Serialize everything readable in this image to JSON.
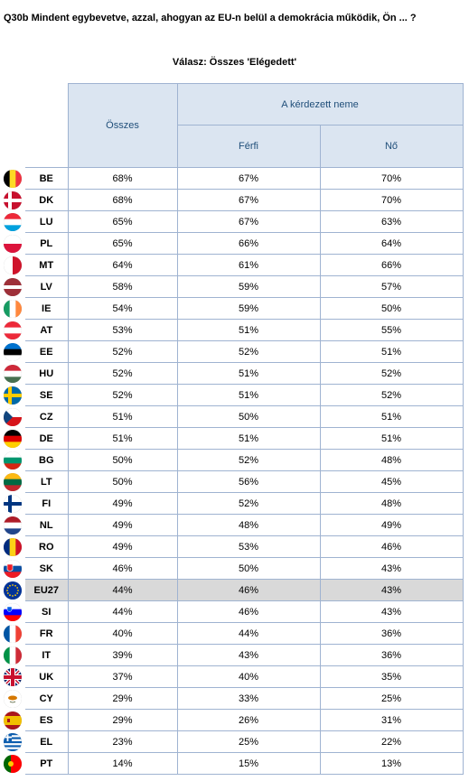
{
  "title": "Q30b Mindent egybevetve, azzal, ahogyan az EU-n belül a demokrácia működik, Ön ... ?",
  "subtitle": "Válasz: Összes 'Elégedett'",
  "headers": {
    "total": "Összes",
    "group": "A kérdezett neme",
    "male": "Férfi",
    "female": "Nő"
  },
  "rows": [
    {
      "code": "BE",
      "total": "68%",
      "male": "67%",
      "female": "70%",
      "flag": "belgium-flag-icon"
    },
    {
      "code": "DK",
      "total": "68%",
      "male": "67%",
      "female": "70%",
      "flag": "denmark-flag-icon"
    },
    {
      "code": "LU",
      "total": "65%",
      "male": "67%",
      "female": "63%",
      "flag": "luxembourg-flag-icon"
    },
    {
      "code": "PL",
      "total": "65%",
      "male": "66%",
      "female": "64%",
      "flag": "poland-flag-icon"
    },
    {
      "code": "MT",
      "total": "64%",
      "male": "61%",
      "female": "66%",
      "flag": "malta-flag-icon"
    },
    {
      "code": "LV",
      "total": "58%",
      "male": "59%",
      "female": "57%",
      "flag": "latvia-flag-icon"
    },
    {
      "code": "IE",
      "total": "54%",
      "male": "59%",
      "female": "50%",
      "flag": "ireland-flag-icon"
    },
    {
      "code": "AT",
      "total": "53%",
      "male": "51%",
      "female": "55%",
      "flag": "austria-flag-icon"
    },
    {
      "code": "EE",
      "total": "52%",
      "male": "52%",
      "female": "51%",
      "flag": "estonia-flag-icon"
    },
    {
      "code": "HU",
      "total": "52%",
      "male": "51%",
      "female": "52%",
      "flag": "hungary-flag-icon"
    },
    {
      "code": "SE",
      "total": "52%",
      "male": "51%",
      "female": "52%",
      "flag": "sweden-flag-icon"
    },
    {
      "code": "CZ",
      "total": "51%",
      "male": "50%",
      "female": "51%",
      "flag": "czechia-flag-icon"
    },
    {
      "code": "DE",
      "total": "51%",
      "male": "51%",
      "female": "51%",
      "flag": "germany-flag-icon"
    },
    {
      "code": "BG",
      "total": "50%",
      "male": "52%",
      "female": "48%",
      "flag": "bulgaria-flag-icon"
    },
    {
      "code": "LT",
      "total": "50%",
      "male": "56%",
      "female": "45%",
      "flag": "lithuania-flag-icon"
    },
    {
      "code": "FI",
      "total": "49%",
      "male": "52%",
      "female": "48%",
      "flag": "finland-flag-icon"
    },
    {
      "code": "NL",
      "total": "49%",
      "male": "48%",
      "female": "49%",
      "flag": "netherlands-flag-icon"
    },
    {
      "code": "RO",
      "total": "49%",
      "male": "53%",
      "female": "46%",
      "flag": "romania-flag-icon"
    },
    {
      "code": "SK",
      "total": "46%",
      "male": "50%",
      "female": "43%",
      "flag": "slovakia-flag-icon"
    },
    {
      "code": "EU27",
      "total": "44%",
      "male": "46%",
      "female": "43%",
      "flag": "eu-flag-icon",
      "highlight": true
    },
    {
      "code": "SI",
      "total": "44%",
      "male": "46%",
      "female": "43%",
      "flag": "slovenia-flag-icon"
    },
    {
      "code": "FR",
      "total": "40%",
      "male": "44%",
      "female": "36%",
      "flag": "france-flag-icon"
    },
    {
      "code": "IT",
      "total": "39%",
      "male": "43%",
      "female": "36%",
      "flag": "italy-flag-icon"
    },
    {
      "code": "UK",
      "total": "37%",
      "male": "40%",
      "female": "35%",
      "flag": "uk-flag-icon"
    },
    {
      "code": "CY",
      "total": "29%",
      "male": "33%",
      "female": "25%",
      "flag": "cyprus-flag-icon"
    },
    {
      "code": "ES",
      "total": "29%",
      "male": "26%",
      "female": "31%",
      "flag": "spain-flag-icon"
    },
    {
      "code": "EL",
      "total": "23%",
      "male": "25%",
      "female": "22%",
      "flag": "greece-flag-icon"
    },
    {
      "code": "PT",
      "total": "14%",
      "male": "15%",
      "female": "13%",
      "flag": "portugal-flag-icon"
    }
  ]
}
